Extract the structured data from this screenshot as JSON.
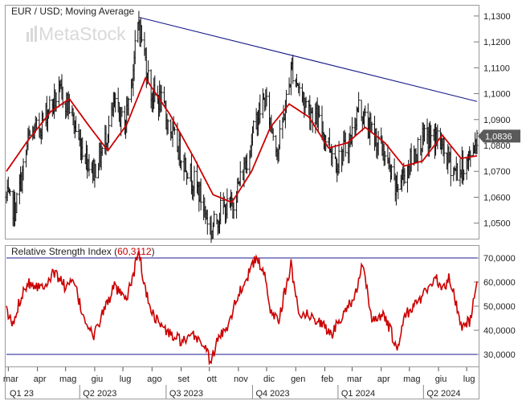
{
  "chart_data": [
    {
      "type": "ohlc",
      "title": "EUR / USD; Moving Average",
      "watermark": "MetaStock",
      "price_label": "1,0836",
      "price_last": 1.0836,
      "ylim": [
        1.044,
        1.134
      ],
      "yticks": [
        "1,0500",
        "1,0600",
        "1,0700",
        "1,0800",
        "1,0900",
        "1,1000",
        "1,1100",
        "1,1200",
        "1,1300"
      ],
      "ytick_values": [
        1.05,
        1.06,
        1.07,
        1.08,
        1.09,
        1.1,
        1.11,
        1.12,
        1.13
      ],
      "x_range": [
        "2023-02-27",
        "2024-07-12"
      ],
      "trendline": {
        "x": [
          "2023-07-18",
          "2024-07-12"
        ],
        "y": [
          1.1295,
          1.097
        ],
        "color": "#1a1a8c"
      },
      "close_anchors": {
        "x": [
          "2023-02-27",
          "2023-03-08",
          "2023-03-15",
          "2023-03-23",
          "2023-04-03",
          "2023-04-14",
          "2023-04-26",
          "2023-05-05",
          "2023-05-15",
          "2023-05-31",
          "2023-06-09",
          "2023-06-22",
          "2023-07-03",
          "2023-07-10",
          "2023-07-18",
          "2023-07-31",
          "2023-08-10",
          "2023-08-25",
          "2023-09-08",
          "2023-09-20",
          "2023-10-03",
          "2023-10-13",
          "2023-10-24",
          "2023-11-07",
          "2023-11-21",
          "2023-11-29",
          "2023-12-13",
          "2023-12-28",
          "2024-01-10",
          "2024-01-24",
          "2024-02-14",
          "2024-02-28",
          "2024-03-08",
          "2024-03-19",
          "2024-04-03",
          "2024-04-16",
          "2024-04-24",
          "2024-05-07",
          "2024-05-15",
          "2024-05-31",
          "2024-06-10",
          "2024-06-19",
          "2024-06-26",
          "2024-07-03",
          "2024-07-12"
        ],
        "y": [
          1.06,
          1.055,
          1.067,
          1.083,
          1.087,
          1.095,
          1.1,
          1.095,
          1.082,
          1.07,
          1.078,
          1.095,
          1.088,
          1.105,
          1.128,
          1.1,
          1.097,
          1.082,
          1.071,
          1.062,
          1.047,
          1.055,
          1.056,
          1.071,
          1.091,
          1.098,
          1.078,
          1.11,
          1.097,
          1.09,
          1.074,
          1.082,
          1.095,
          1.087,
          1.078,
          1.063,
          1.068,
          1.077,
          1.082,
          1.083,
          1.075,
          1.07,
          1.071,
          1.074,
          1.0836
        ]
      },
      "moving_average": {
        "x": [
          "2023-02-27",
          "2023-03-20",
          "2023-04-15",
          "2023-05-05",
          "2023-05-25",
          "2023-06-15",
          "2023-07-05",
          "2023-07-25",
          "2023-08-20",
          "2023-09-15",
          "2023-10-05",
          "2023-10-25",
          "2023-11-15",
          "2023-12-05",
          "2023-12-25",
          "2024-01-15",
          "2024-02-05",
          "2024-02-25",
          "2024-03-15",
          "2024-04-05",
          "2024-04-25",
          "2024-05-15",
          "2024-06-05",
          "2024-06-25",
          "2024-07-12"
        ],
        "y": [
          1.07,
          1.081,
          1.093,
          1.098,
          1.088,
          1.078,
          1.088,
          1.106,
          1.092,
          1.075,
          1.061,
          1.058,
          1.07,
          1.087,
          1.096,
          1.091,
          1.079,
          1.081,
          1.087,
          1.081,
          1.072,
          1.074,
          1.084,
          1.075,
          1.076
        ],
        "color": "#cc0000"
      }
    },
    {
      "type": "line",
      "title": "Relative Strength Index",
      "value_label": "60,3112",
      "ylim": [
        25000,
        75000
      ],
      "yticks": [
        "30,0000",
        "40,0000",
        "50,0000",
        "60,0000",
        "70,0000"
      ],
      "ytick_values": [
        30000,
        40000,
        50000,
        60000,
        70000
      ],
      "hlines": [
        30000,
        70000
      ],
      "series": [
        {
          "x": [
            "2023-02-27",
            "2023-03-06",
            "2023-03-15",
            "2023-03-22",
            "2023-04-05",
            "2023-04-20",
            "2023-05-01",
            "2023-05-10",
            "2023-05-18",
            "2023-05-31",
            "2023-06-08",
            "2023-06-22",
            "2023-07-04",
            "2023-07-12",
            "2023-07-18",
            "2023-07-25",
            "2023-08-03",
            "2023-08-15",
            "2023-08-25",
            "2023-09-06",
            "2023-09-15",
            "2023-09-25",
            "2023-10-03",
            "2023-10-10",
            "2023-10-20",
            "2023-11-01",
            "2023-11-10",
            "2023-11-20",
            "2023-11-28",
            "2023-12-06",
            "2023-12-14",
            "2023-12-27",
            "2024-01-04",
            "2024-01-15",
            "2024-01-26",
            "2024-02-08",
            "2024-02-20",
            "2024-03-05",
            "2024-03-12",
            "2024-03-22",
            "2024-04-03",
            "2024-04-12",
            "2024-04-17",
            "2024-04-26",
            "2024-05-06",
            "2024-05-16",
            "2024-05-28",
            "2024-06-06",
            "2024-06-13",
            "2024-06-25",
            "2024-07-05",
            "2024-07-12"
          ],
          "values": [
            48000,
            42000,
            55000,
            60000,
            58000,
            64000,
            58000,
            60000,
            48000,
            37000,
            46000,
            58000,
            52000,
            63000,
            73000,
            56000,
            46000,
            40000,
            37000,
            35000,
            38000,
            34000,
            27000,
            36000,
            42000,
            55000,
            62000,
            70000,
            64000,
            47000,
            45000,
            67000,
            48000,
            46000,
            44000,
            38000,
            47000,
            55000,
            67000,
            45000,
            46000,
            39000,
            31000,
            46000,
            50000,
            55000,
            62000,
            57000,
            62000,
            42000,
            44000,
            60311
          ],
          "color": "#cc0000"
        }
      ]
    }
  ],
  "x_axis": {
    "month_labels": [
      "mar",
      "apr",
      "mag",
      "giu",
      "lug",
      "ago",
      "set",
      "ott",
      "nov",
      "dic",
      "gen",
      "feb",
      "mar",
      "apr",
      "mag",
      "giu",
      "lug"
    ],
    "month_dates": [
      "2023-03-01",
      "2023-04-01",
      "2023-05-01",
      "2023-06-01",
      "2023-07-01",
      "2023-08-01",
      "2023-09-01",
      "2023-10-01",
      "2023-11-01",
      "2023-12-01",
      "2024-01-01",
      "2024-02-01",
      "2024-03-01",
      "2024-04-01",
      "2024-05-01",
      "2024-06-01",
      "2024-07-01"
    ],
    "quarter_labels": [
      "Q1 23",
      "Q2 2023",
      "Q3 2023",
      "Q4 2023",
      "Q1 2024",
      "Q2 2024"
    ],
    "quarter_dates": [
      "2023-02-27",
      "2023-05-16",
      "2023-08-16",
      "2023-11-16",
      "2024-02-15",
      "2024-05-16"
    ]
  }
}
